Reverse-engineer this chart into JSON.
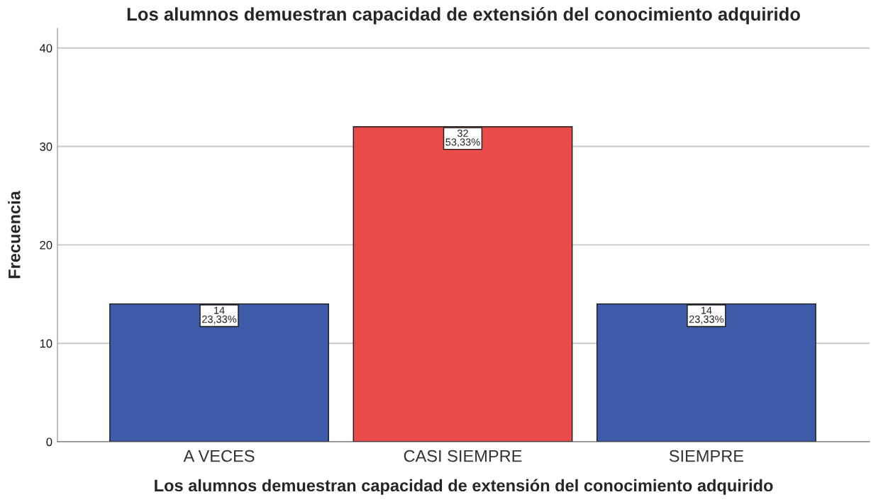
{
  "chart_data": {
    "type": "bar",
    "title": "Los alumnos demuestran capacidad de extensión del conocimiento adquirido",
    "xlabel": "Los alumnos demuestran capacidad de extensión del conocimiento adquirido",
    "ylabel": "Frecuencia",
    "categories": [
      "A VECES",
      "CASI SIEMPRE",
      "SIEMPRE"
    ],
    "values": [
      14,
      32,
      14
    ],
    "colors": [
      "#3e5ba9",
      "#e94b4b",
      "#3e5ba9"
    ],
    "value_labels": [
      "14\n23,33%",
      "32\n53,33%",
      "14\n23,33%"
    ],
    "ylim": [
      0,
      42
    ],
    "yticks": [
      0,
      10,
      20,
      30,
      40
    ],
    "grid": "y"
  }
}
